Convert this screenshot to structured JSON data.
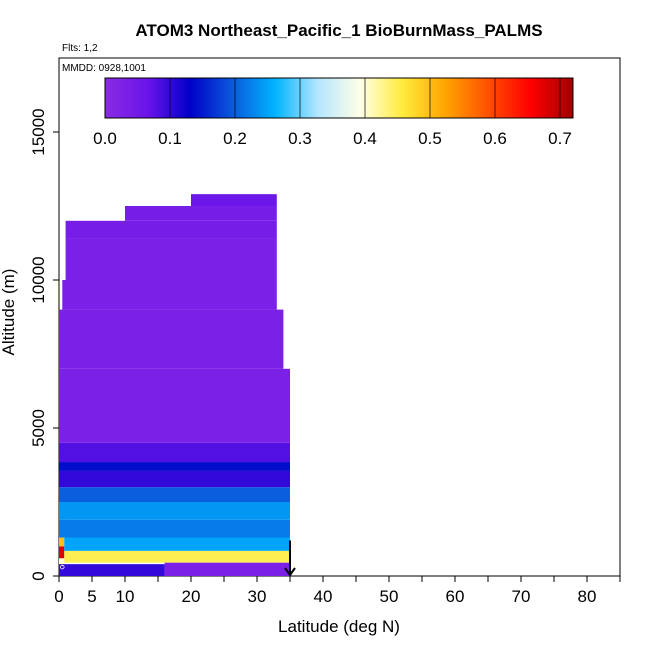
{
  "chart_data": {
    "type": "heatmap",
    "title": "ATOM3 Northeast_Pacific_1 BioBurnMass_PALMS",
    "flights_label": "Flts: 1,2",
    "dates_label": "MMDD: 0928,1001",
    "xlabel": "Latitude (deg N)",
    "ylabel": "Altitude (m)",
    "xlim": [
      0,
      85
    ],
    "ylim": [
      0,
      17500
    ],
    "x_ticks": [
      0,
      5,
      10,
      20,
      30,
      40,
      50,
      60,
      70,
      80
    ],
    "x_minor_ticks": [
      15,
      25,
      35,
      45,
      55,
      65,
      75,
      85
    ],
    "y_ticks": [
      0,
      5000,
      10000,
      15000
    ],
    "grid": false,
    "colorbar": {
      "placement": "top, inside plot",
      "min": 0.0,
      "max": 0.72,
      "ticks": [
        0.0,
        0.1,
        0.2,
        0.3,
        0.4,
        0.5,
        0.6,
        0.7
      ],
      "tick_labels": [
        "0.0",
        "0.1",
        "0.2",
        "0.3",
        "0.4",
        "0.5",
        "0.6",
        "0.7"
      ],
      "colormap": [
        "#8a2be2",
        "#6a14ea",
        "#0000c8",
        "#0a5adc",
        "#00b4ff",
        "#b4e6ff",
        "#ffffe6",
        "#ffeb3c",
        "#ffa500",
        "#ff5000",
        "#ff0000",
        "#a00000"
      ]
    },
    "marker": {
      "latitude": 35,
      "symbol": "down-arrow"
    },
    "cells": [
      {
        "lat": [
          0,
          0.8
        ],
        "alt": [
          200,
          600
        ],
        "value": 0.4
      },
      {
        "lat": [
          0,
          0.8
        ],
        "alt": [
          600,
          1000
        ],
        "value": 0.68
      },
      {
        "lat": [
          0,
          0.8
        ],
        "alt": [
          1000,
          1400
        ],
        "value": 0.5
      },
      {
        "lat": [
          0,
          0.8
        ],
        "alt": [
          1400,
          1900
        ],
        "value": 0.45
      },
      {
        "lat": [
          0.8,
          35
        ],
        "alt": [
          450,
          850
        ],
        "value": 0.45
      },
      {
        "lat": [
          0.8,
          35
        ],
        "alt": [
          850,
          1300
        ],
        "value": 0.25
      },
      {
        "lat": [
          0,
          35
        ],
        "alt": [
          1300,
          1900
        ],
        "value": 0.22
      },
      {
        "lat": [
          0,
          35
        ],
        "alt": [
          1900,
          2500
        ],
        "value": 0.24
      },
      {
        "lat": [
          0,
          35
        ],
        "alt": [
          2500,
          3000
        ],
        "value": 0.2
      },
      {
        "lat": [
          0,
          35
        ],
        "alt": [
          3000,
          3550
        ],
        "value": 0.1
      },
      {
        "lat": [
          0,
          35
        ],
        "alt": [
          3550,
          3850
        ],
        "value": 0.14
      },
      {
        "lat": [
          0,
          35
        ],
        "alt": [
          3850,
          4500
        ],
        "value": 0.08
      },
      {
        "lat": [
          0,
          35
        ],
        "alt": [
          4500,
          7000
        ],
        "value": 0.03
      },
      {
        "lat": [
          0,
          34
        ],
        "alt": [
          7000,
          9000
        ],
        "value": 0.03
      },
      {
        "lat": [
          0.5,
          33
        ],
        "alt": [
          9000,
          10000
        ],
        "value": 0.03
      },
      {
        "lat": [
          1,
          33
        ],
        "alt": [
          10000,
          11400
        ],
        "value": 0.03
      },
      {
        "lat": [
          1,
          33
        ],
        "alt": [
          11400,
          12000
        ],
        "value": 0.04
      },
      {
        "lat": [
          10,
          33
        ],
        "alt": [
          12000,
          12500
        ],
        "value": 0.04
      },
      {
        "lat": [
          20,
          33
        ],
        "alt": [
          12500,
          12900
        ],
        "value": 0.06
      },
      {
        "lat": [
          0,
          16
        ],
        "alt": [
          0,
          400
        ],
        "value": 0.1
      },
      {
        "lat": [
          16,
          35
        ],
        "alt": [
          0,
          450
        ],
        "value": 0.03
      }
    ],
    "series": [
      {
        "lat": 0.5,
        "alt": 300,
        "value": 0.4
      }
    ]
  }
}
